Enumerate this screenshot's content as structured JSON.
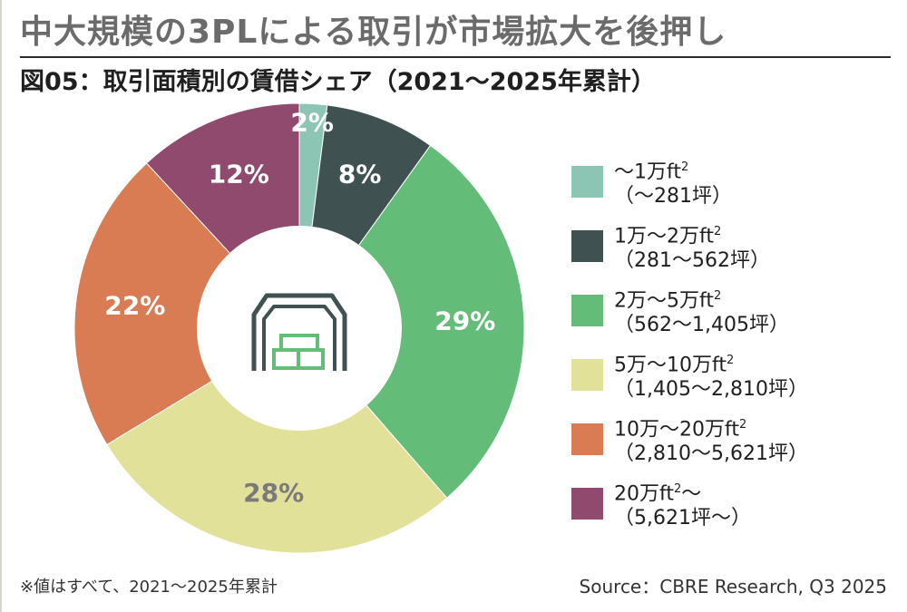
{
  "header": {
    "headline": "中大規模の3PLによる取引が市場拡大を後押し",
    "subtitle": "図05：取引面積別の賃借シェア（2021〜2025年累計）"
  },
  "chart_data": {
    "type": "pie",
    "categories": [
      "〜1万ft²（〜281坪）",
      "1万〜2万ft²（281〜562坪）",
      "2万〜5万ft²（562〜1,405坪）",
      "5万〜10万ft²（1,405〜2,810坪）",
      "10万〜20万ft²（2,810〜5,621坪）",
      "20万ft²〜（5,621坪〜）"
    ],
    "values": [
      2,
      8,
      29,
      28,
      22,
      12
    ],
    "value_labels": [
      "2%",
      "8%",
      "29%",
      "28%",
      "22%",
      "12%"
    ],
    "colors": [
      "#8cc5b4",
      "#3f5251",
      "#63bd78",
      "#e2e19a",
      "#d97c53",
      "#8f4a6d"
    ],
    "label_colors": [
      "#ffffff",
      "#ffffff",
      "#ffffff",
      "#7a7a7a",
      "#ffffff",
      "#ffffff"
    ],
    "donut": true,
    "center_icon": "warehouse-icon",
    "legend_position": "right"
  },
  "legend": [
    {
      "line1": "〜1万ft",
      "sup": "2",
      "after": "",
      "line2": "（〜281坪）"
    },
    {
      "line1": "1万〜2万ft",
      "sup": "2",
      "after": "",
      "line2": "（281〜562坪）"
    },
    {
      "line1": "2万〜5万ft",
      "sup": "2",
      "after": "",
      "line2": "（562〜1,405坪）"
    },
    {
      "line1": "5万〜10万ft",
      "sup": "2",
      "after": "",
      "line2": "（1,405〜2,810坪）"
    },
    {
      "line1": "10万〜20万ft",
      "sup": "2",
      "after": "",
      "line2": "（2,810〜5,621坪）"
    },
    {
      "line1": "20万ft",
      "sup": "2",
      "after": "〜",
      "line2": "（5,621坪〜）"
    }
  ],
  "footer": {
    "note": "※値はすべて、2021〜2025年累計",
    "source": "Source：CBRE Research, Q3 2025"
  }
}
